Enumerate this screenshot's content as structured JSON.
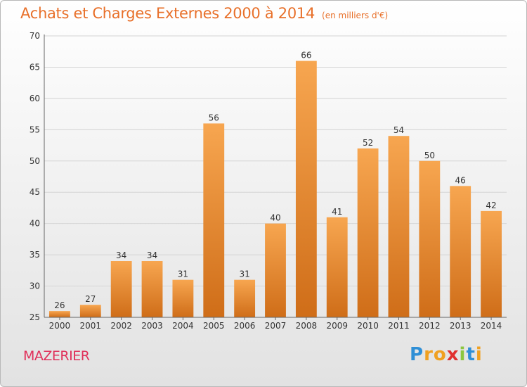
{
  "header": {
    "title": "Achats et Charges Externes 2000 à 2014",
    "subtitle": "(en milliers d'€)"
  },
  "footer": {
    "city": "MAZERIER",
    "logo_letters": [
      "P",
      "r",
      "o",
      "x",
      "i",
      "t",
      "i"
    ],
    "logo_colors": [
      "#2f8fd6",
      "#f0a020",
      "#f0a020",
      "#e03030",
      "#8cc63f",
      "#2f8fd6",
      "#f0a020"
    ]
  },
  "colors": {
    "bar_light": "#f7a650",
    "bar_dark": "#cf6d18",
    "title": "#e8702a",
    "city": "#e0305a"
  },
  "chart_data": {
    "type": "bar",
    "title": "Achats et Charges Externes 2000 à 2014",
    "subtitle": "(en milliers d'€)",
    "categories": [
      "2000",
      "2001",
      "2002",
      "2003",
      "2004",
      "2005",
      "2006",
      "2007",
      "2008",
      "2009",
      "2010",
      "2011",
      "2012",
      "2013",
      "2014"
    ],
    "values": [
      26,
      27,
      34,
      34,
      31,
      56,
      31,
      40,
      66,
      41,
      52,
      54,
      50,
      46,
      42
    ],
    "ylim": [
      25,
      70
    ],
    "yticks": [
      25,
      30,
      35,
      40,
      45,
      50,
      55,
      60,
      65,
      70
    ],
    "grid": true,
    "xlabel": "",
    "ylabel": ""
  }
}
